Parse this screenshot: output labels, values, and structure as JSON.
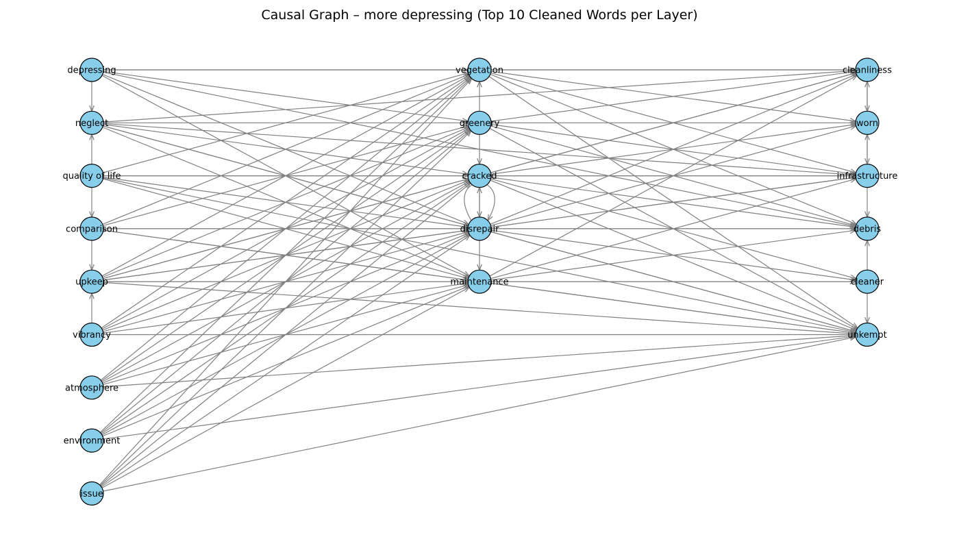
{
  "title": "Causal Graph – more depressing (Top 10 Cleaned Words per Layer)",
  "colors": {
    "node_fill": "#87ceeb",
    "node_stroke": "#000000",
    "edge": "#808080"
  },
  "layers": [
    [
      "depressing",
      "neglect",
      "quality of life",
      "comparison",
      "upkeep",
      "vibrancy",
      "atmosphere",
      "environment",
      "issue"
    ],
    [
      "vegetation",
      "greenery",
      "cracked",
      "disrepair",
      "maintenance"
    ],
    [
      "cleanliness",
      "worn",
      "infrastructure",
      "debris",
      "cleaner",
      "unkempt"
    ]
  ],
  "edges": [
    [
      "depressing",
      "neglect"
    ],
    [
      "quality of life",
      "neglect"
    ],
    [
      "quality of life",
      "comparison"
    ],
    [
      "comparison",
      "upkeep"
    ],
    [
      "vibrancy",
      "upkeep"
    ],
    [
      "greenery",
      "vegetation"
    ],
    [
      "greenery",
      "cracked"
    ],
    [
      "cracked",
      "disrepair"
    ],
    [
      "disrepair",
      "cracked"
    ],
    [
      "disrepair",
      "maintenance"
    ],
    [
      "worn",
      "cleanliness"
    ],
    [
      "cleanliness",
      "worn"
    ],
    [
      "worn",
      "infrastructure"
    ],
    [
      "infrastructure",
      "worn"
    ],
    [
      "infrastructure",
      "debris"
    ],
    [
      "cleaner",
      "debris"
    ],
    [
      "cleaner",
      "unkempt"
    ],
    [
      "depressing",
      "vegetation"
    ],
    [
      "depressing",
      "greenery"
    ],
    [
      "depressing",
      "disrepair"
    ],
    [
      "depressing",
      "maintenance"
    ],
    [
      "depressing",
      "cleanliness"
    ],
    [
      "depressing",
      "debris"
    ],
    [
      "neglect",
      "greenery"
    ],
    [
      "neglect",
      "cracked"
    ],
    [
      "neglect",
      "disrepair"
    ],
    [
      "neglect",
      "maintenance"
    ],
    [
      "neglect",
      "cleanliness"
    ],
    [
      "neglect",
      "infrastructure"
    ],
    [
      "neglect",
      "unkempt"
    ],
    [
      "quality of life",
      "vegetation"
    ],
    [
      "quality of life",
      "cracked"
    ],
    [
      "quality of life",
      "disrepair"
    ],
    [
      "quality of life",
      "maintenance"
    ],
    [
      "quality of life",
      "infrastructure"
    ],
    [
      "quality of life",
      "unkempt"
    ],
    [
      "comparison",
      "vegetation"
    ],
    [
      "comparison",
      "greenery"
    ],
    [
      "comparison",
      "disrepair"
    ],
    [
      "comparison",
      "maintenance"
    ],
    [
      "comparison",
      "debris"
    ],
    [
      "comparison",
      "unkempt"
    ],
    [
      "upkeep",
      "vegetation"
    ],
    [
      "upkeep",
      "greenery"
    ],
    [
      "upkeep",
      "cracked"
    ],
    [
      "upkeep",
      "disrepair"
    ],
    [
      "upkeep",
      "maintenance"
    ],
    [
      "upkeep",
      "cleanliness"
    ],
    [
      "upkeep",
      "infrastructure"
    ],
    [
      "upkeep",
      "cleaner"
    ],
    [
      "upkeep",
      "unkempt"
    ],
    [
      "vibrancy",
      "vegetation"
    ],
    [
      "vibrancy",
      "greenery"
    ],
    [
      "vibrancy",
      "cracked"
    ],
    [
      "vibrancy",
      "disrepair"
    ],
    [
      "vibrancy",
      "maintenance"
    ],
    [
      "vibrancy",
      "unkempt"
    ],
    [
      "atmosphere",
      "vegetation"
    ],
    [
      "atmosphere",
      "greenery"
    ],
    [
      "atmosphere",
      "cracked"
    ],
    [
      "atmosphere",
      "disrepair"
    ],
    [
      "atmosphere",
      "maintenance"
    ],
    [
      "atmosphere",
      "unkempt"
    ],
    [
      "environment",
      "vegetation"
    ],
    [
      "environment",
      "greenery"
    ],
    [
      "environment",
      "cracked"
    ],
    [
      "environment",
      "disrepair"
    ],
    [
      "environment",
      "maintenance"
    ],
    [
      "environment",
      "unkempt"
    ],
    [
      "issue",
      "vegetation"
    ],
    [
      "issue",
      "greenery"
    ],
    [
      "issue",
      "cracked"
    ],
    [
      "issue",
      "disrepair"
    ],
    [
      "issue",
      "maintenance"
    ],
    [
      "issue",
      "unkempt"
    ],
    [
      "vegetation",
      "cleanliness"
    ],
    [
      "vegetation",
      "worn"
    ],
    [
      "vegetation",
      "debris"
    ],
    [
      "vegetation",
      "unkempt"
    ],
    [
      "vegetation",
      "infrastructure"
    ],
    [
      "greenery",
      "cleanliness"
    ],
    [
      "greenery",
      "worn"
    ],
    [
      "greenery",
      "infrastructure"
    ],
    [
      "greenery",
      "debris"
    ],
    [
      "greenery",
      "unkempt"
    ],
    [
      "cracked",
      "cleanliness"
    ],
    [
      "cracked",
      "infrastructure"
    ],
    [
      "cracked",
      "debris"
    ],
    [
      "cracked",
      "cleaner"
    ],
    [
      "cracked",
      "unkempt"
    ],
    [
      "cracked",
      "worn"
    ],
    [
      "disrepair",
      "cleanliness"
    ],
    [
      "disrepair",
      "worn"
    ],
    [
      "disrepair",
      "infrastructure"
    ],
    [
      "disrepair",
      "debris"
    ],
    [
      "disrepair",
      "cleaner"
    ],
    [
      "disrepair",
      "unkempt"
    ],
    [
      "maintenance",
      "cleanliness"
    ],
    [
      "maintenance",
      "infrastructure"
    ],
    [
      "maintenance",
      "debris"
    ],
    [
      "maintenance",
      "cleaner"
    ],
    [
      "maintenance",
      "unkempt"
    ]
  ],
  "self_loops": [
    "disrepair"
  ]
}
